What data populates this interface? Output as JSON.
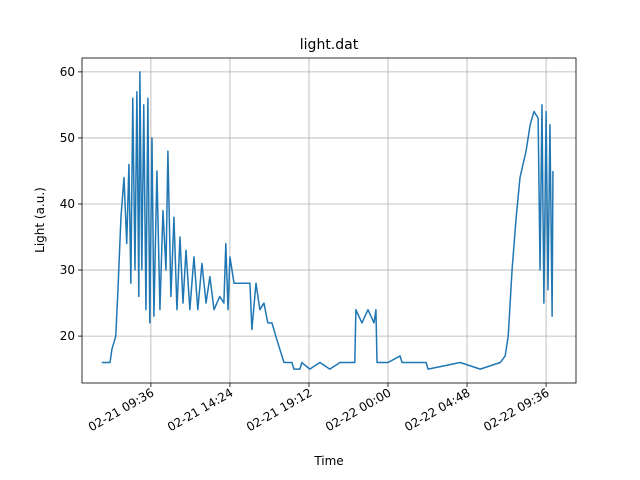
{
  "chart_data": {
    "type": "line",
    "title": "light.dat",
    "x_label": "Time",
    "y_label": "Light (a.u.)",
    "grid": true,
    "xlim": [
      "02-21 05:25",
      "02-22 11:25"
    ],
    "xticks": [
      "02-21 09:36",
      "02-21 14:24",
      "02-21 19:12",
      "02-22 00:00",
      "02-22 04:48",
      "02-22 09:36"
    ],
    "ylim": [
      12.9,
      62.1
    ],
    "yticks": [
      20,
      30,
      40,
      50,
      60
    ],
    "x": [
      "02-21 06:37",
      "02-21 07:07",
      "02-21 07:14",
      "02-21 07:28",
      "02-21 07:36",
      "02-21 07:47",
      "02-21 07:58",
      "02-21 08:08",
      "02-21 08:16",
      "02-21 08:23",
      "02-21 08:30",
      "02-21 08:38",
      "02-21 08:45",
      "02-21 08:52",
      "02-21 08:56",
      "02-21 09:03",
      "02-21 09:10",
      "02-21 09:18",
      "02-21 09:25",
      "02-21 09:32",
      "02-21 09:40",
      "02-21 09:47",
      "02-21 09:58",
      "02-21 10:09",
      "02-21 10:20",
      "02-21 10:31",
      "02-21 10:38",
      "02-21 10:49",
      "02-21 11:00",
      "02-21 11:11",
      "02-21 11:22",
      "02-21 11:33",
      "02-21 11:44",
      "02-21 11:58",
      "02-21 12:13",
      "02-21 12:27",
      "02-21 12:42",
      "02-21 12:57",
      "02-21 13:11",
      "02-21 13:26",
      "02-21 13:47",
      "02-21 14:02",
      "02-21 14:09",
      "02-21 14:17",
      "02-21 14:24",
      "02-21 14:39",
      "02-21 15:00",
      "02-21 15:37",
      "02-21 15:44",
      "02-21 15:59",
      "02-21 16:13",
      "02-21 16:28",
      "02-21 16:42",
      "02-21 16:57",
      "02-21 17:11",
      "02-21 17:26",
      "02-21 17:41",
      "02-21 18:10",
      "02-21 18:17",
      "02-21 18:39",
      "02-21 18:46",
      "02-21 19:15",
      "02-21 19:52",
      "02-21 20:28",
      "02-21 21:05",
      "02-21 21:49",
      "02-21 21:59",
      "02-21 22:03",
      "02-21 22:25",
      "02-21 22:47",
      "02-21 23:09",
      "02-21 23:16",
      "02-21 23:20",
      "02-22 00:00",
      "02-22 00:44",
      "02-22 00:51",
      "02-22 02:19",
      "02-22 02:26",
      "02-22 04:23",
      "02-22 05:36",
      "02-22 06:49",
      "02-22 07:07",
      "02-22 07:18",
      "02-22 07:32",
      "02-22 07:47",
      "02-22 08:01",
      "02-22 08:23",
      "02-22 08:38",
      "02-22 08:52",
      "02-22 09:07",
      "02-22 09:14",
      "02-22 09:21",
      "02-22 09:28",
      "02-22 09:36",
      "02-22 09:43",
      "02-22 09:50",
      "02-22 09:58",
      "02-22 10:01"
    ],
    "series": [
      {
        "color": "#1f77b4",
        "values": [
          16,
          16,
          18,
          20,
          27,
          38,
          44,
          34,
          46,
          28,
          56,
          30,
          57,
          26,
          60,
          30,
          55,
          24,
          56,
          22,
          50,
          23,
          45,
          24,
          39,
          30,
          48,
          26,
          38,
          24,
          35,
          25,
          33,
          24,
          32,
          24,
          31,
          25,
          29,
          24,
          26,
          25,
          34,
          24,
          32,
          28,
          28,
          28,
          21,
          28,
          24,
          25,
          22,
          22,
          20,
          18,
          16,
          16,
          15,
          15,
          16,
          15,
          16,
          15,
          16,
          16,
          16,
          24,
          22,
          24,
          22,
          24,
          16,
          16,
          17,
          16,
          16,
          15,
          16,
          15,
          16,
          17,
          20,
          30,
          38,
          44,
          48,
          52,
          54,
          53,
          30,
          55,
          25,
          54,
          27,
          52,
          23,
          45
        ]
      }
    ]
  }
}
